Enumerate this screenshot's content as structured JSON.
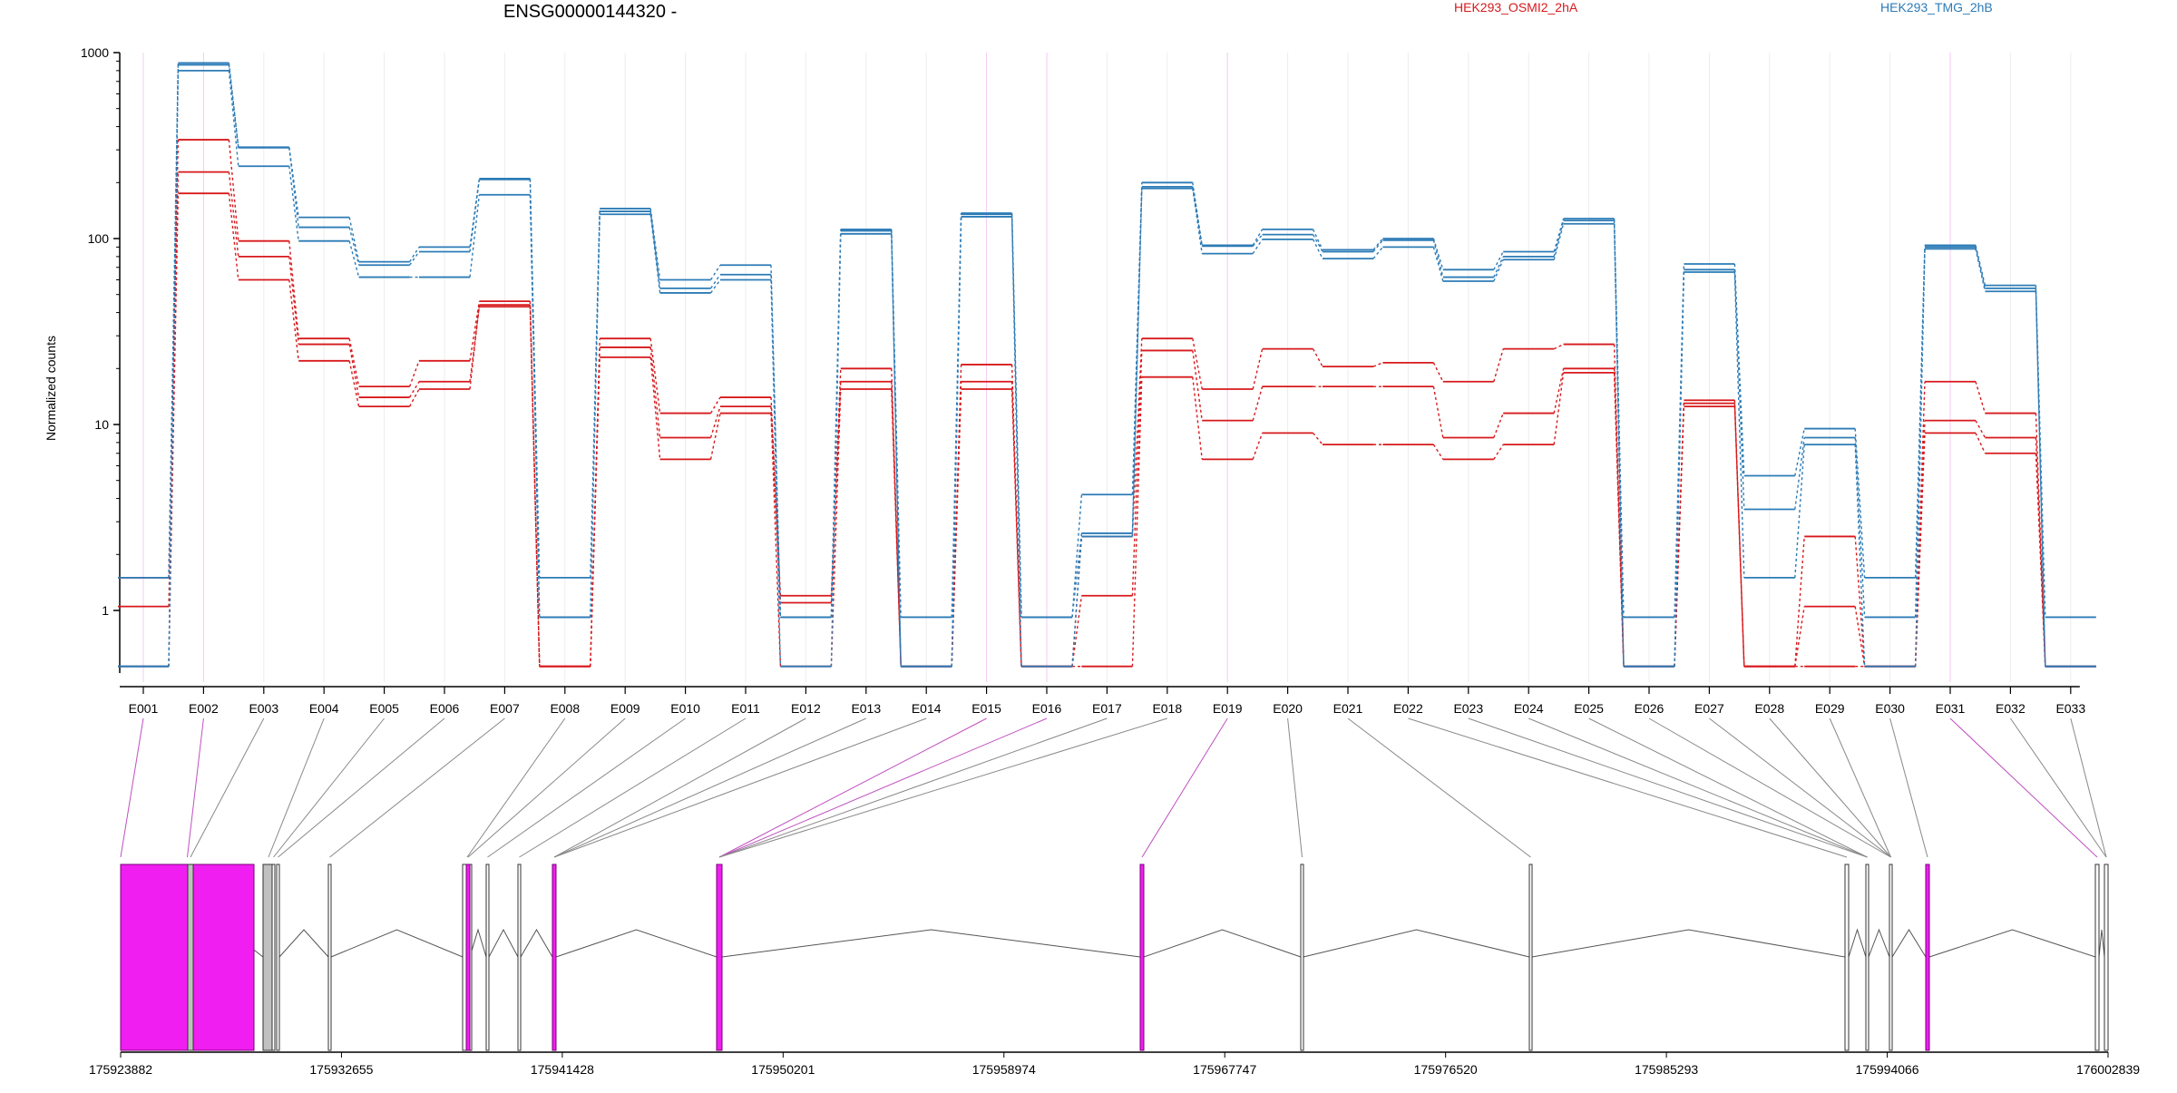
{
  "chart_data": {
    "type": "line",
    "title": "ENSG00000144320 -",
    "ylabel": "Normalized counts",
    "yscale": "log",
    "ylim": [
      0.5,
      1000
    ],
    "yticks": [
      1,
      10,
      100,
      1000
    ],
    "ytick_labels": [
      "1",
      "10",
      "100",
      "1000"
    ],
    "grid": "light vertical lines at each exon",
    "legend": "top",
    "categories": [
      "E001",
      "E002",
      "E003",
      "E004",
      "E005",
      "E006",
      "E007",
      "E008",
      "E009",
      "E010",
      "E011",
      "E012",
      "E013",
      "E014",
      "E015",
      "E016",
      "E017",
      "E018",
      "E019",
      "E020",
      "E021",
      "E022",
      "E023",
      "E024",
      "E025",
      "E026",
      "E027",
      "E028",
      "E029",
      "E030",
      "E031",
      "E032",
      "E033"
    ],
    "groups": [
      {
        "name": "HEK293_OSMI2_2hA",
        "color": "#d7191c"
      },
      {
        "name": "HEK293_TMG_2hB",
        "color": "#2c7bb6"
      }
    ],
    "series": [
      {
        "group": "HEK293_OSMI2_2hA",
        "values": [
          1.5,
          340,
          97,
          29,
          16,
          22,
          46,
          0.5,
          29,
          11.5,
          14,
          1.2,
          20,
          0.5,
          21,
          0.5,
          2.5,
          29,
          15.5,
          25.5,
          20.5,
          21.5,
          17,
          25.5,
          27,
          0.5,
          13.5,
          0.5,
          2.5,
          0.5,
          17,
          11.5,
          0.5
        ]
      },
      {
        "group": "HEK293_OSMI2_2hA",
        "values": [
          1.05,
          228,
          80,
          27,
          14,
          17,
          43,
          0.5,
          26,
          8.5,
          12.5,
          1.1,
          17,
          0.5,
          17,
          0.5,
          1.2,
          25,
          10.5,
          16,
          16,
          16,
          8.5,
          11.5,
          20,
          0.5,
          13,
          0.5,
          1.05,
          0.5,
          10.5,
          8.5,
          0.5
        ]
      },
      {
        "group": "HEK293_OSMI2_2hA",
        "values": [
          0.5,
          175,
          60,
          22,
          12.5,
          15.5,
          44,
          0.5,
          23,
          6.5,
          11.5,
          0.5,
          15.5,
          0.5,
          15.5,
          0.5,
          0.5,
          18,
          6.5,
          9,
          7.8,
          7.8,
          6.5,
          7.8,
          19,
          0.5,
          12.5,
          0.5,
          0.5,
          0.5,
          9,
          7,
          0.5
        ]
      },
      {
        "group": "HEK293_TMG_2hB",
        "values": [
          1.5,
          880,
          310,
          130,
          75,
          90,
          210,
          1.5,
          145,
          60,
          72,
          0.92,
          112,
          0.92,
          137,
          0.92,
          4.2,
          200,
          92,
          112,
          87,
          100,
          68,
          85,
          128,
          0.92,
          73,
          5.3,
          9.5,
          1.5,
          92,
          56,
          0.92
        ]
      },
      {
        "group": "HEK293_TMG_2hB",
        "values": [
          0.5,
          860,
          308,
          115,
          72,
          85,
          208,
          0.92,
          140,
          54,
          64,
          0.92,
          110,
          0.5,
          135,
          0.92,
          2.6,
          190,
          91,
          105,
          85,
          98,
          62,
          80,
          125,
          0.5,
          68,
          3.5,
          8.5,
          0.92,
          90,
          54,
          0.5
        ]
      },
      {
        "group": "HEK293_TMG_2hB",
        "values": [
          0.5,
          800,
          245,
          97,
          62,
          62,
          172,
          0.92,
          135,
          51,
          60,
          0.5,
          106,
          0.5,
          131,
          0.5,
          2.5,
          186,
          83,
          99,
          78,
          90,
          59,
          77,
          120,
          0.5,
          66,
          1.5,
          7.8,
          0.5,
          88,
          52,
          0.5
        ]
      }
    ],
    "genomic_axis_labels": [
      "175923882",
      "175932655",
      "175941428",
      "175950201",
      "175958974",
      "175967747",
      "175976520",
      "175985293",
      "175994066",
      "176002839"
    ],
    "highlight_color": "#f01ef0",
    "exon_color": "#c0c0c0",
    "highlighted_exons": [
      "E001",
      "E002",
      "E015",
      "E016",
      "E019",
      "E031"
    ]
  }
}
